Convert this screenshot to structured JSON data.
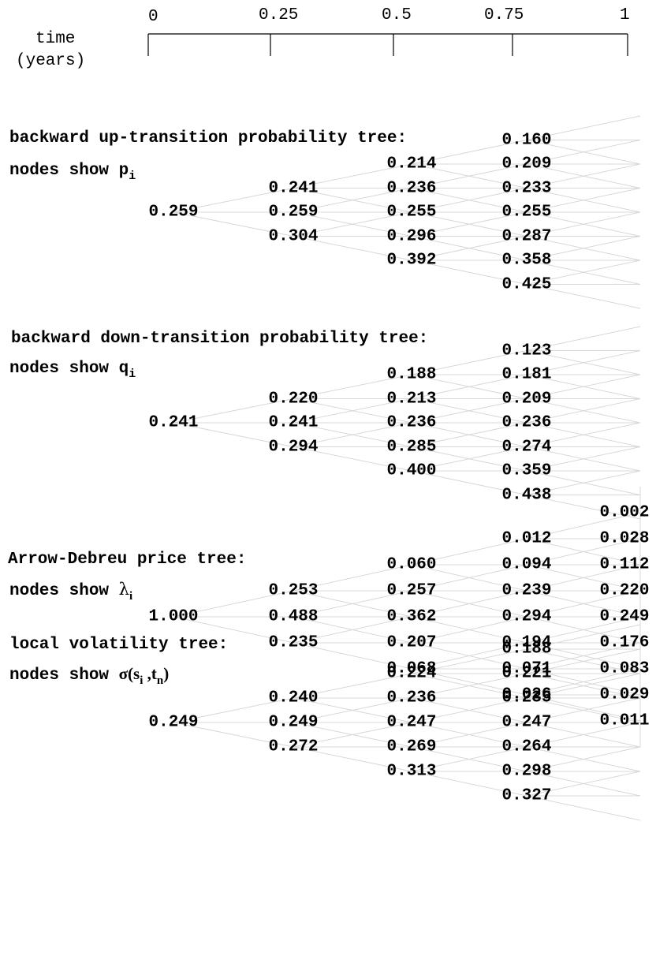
{
  "axis": {
    "title_line1": "time",
    "title_line2": "(years)",
    "ticks": [
      "0",
      "0.25",
      "0.5",
      "0.75",
      "1"
    ]
  },
  "trees": [
    {
      "title": "backward up-transition probability tree:",
      "caption_prefix": "nodes show ",
      "caption_symbol": "p",
      "caption_sub": "i",
      "columns": [
        [
          "0.259"
        ],
        [
          "0.241",
          "0.259",
          "0.304"
        ],
        [
          "0.214",
          "0.236",
          "0.255",
          "0.296",
          "0.392"
        ],
        [
          "0.160",
          "0.209",
          "0.233",
          "0.255",
          "0.287",
          "0.358",
          "0.425"
        ]
      ]
    },
    {
      "title": "backward down-transition probability tree:",
      "caption_prefix": "nodes show ",
      "caption_symbol": "q",
      "caption_sub": "i",
      "columns": [
        [
          "0.241"
        ],
        [
          "0.220",
          "0.241",
          "0.294"
        ],
        [
          "0.188",
          "0.213",
          "0.236",
          "0.285",
          "0.400"
        ],
        [
          "0.123",
          "0.181",
          "0.209",
          "0.236",
          "0.274",
          "0.359",
          "0.438"
        ]
      ]
    },
    {
      "title": "Arrow-Debreu price tree:",
      "caption_prefix": "nodes show ",
      "caption_symbol": "λ",
      "caption_sub": "i",
      "columns": [
        [
          "1.000"
        ],
        [
          "0.253",
          "0.488",
          "0.235"
        ],
        [
          "0.060",
          "0.257",
          "0.362",
          "0.207",
          "0.068"
        ],
        [
          "0.012",
          "0.094",
          "0.239",
          "0.294",
          "0.194",
          "0.071",
          "0.026"
        ],
        [
          "0.002",
          "0.028",
          "0.112",
          "0.220",
          "0.249",
          "0.176",
          "0.083",
          "0.029",
          "0.011"
        ]
      ]
    },
    {
      "title": "local volatility tree:",
      "caption_prefix": "nodes show ",
      "caption_symbol": "σ(s",
      "caption_sub": "i",
      "caption_mid": " ,t",
      "caption_sub2": "n",
      "caption_end": ")",
      "columns": [
        [
          "0.249"
        ],
        [
          "0.240",
          "0.249",
          "0.272"
        ],
        [
          "0.224",
          "0.236",
          "0.247",
          "0.269",
          "0.313"
        ],
        [
          "0.188",
          "0.221",
          "0.235",
          "0.247",
          "0.264",
          "0.298",
          "0.327"
        ]
      ]
    }
  ]
}
